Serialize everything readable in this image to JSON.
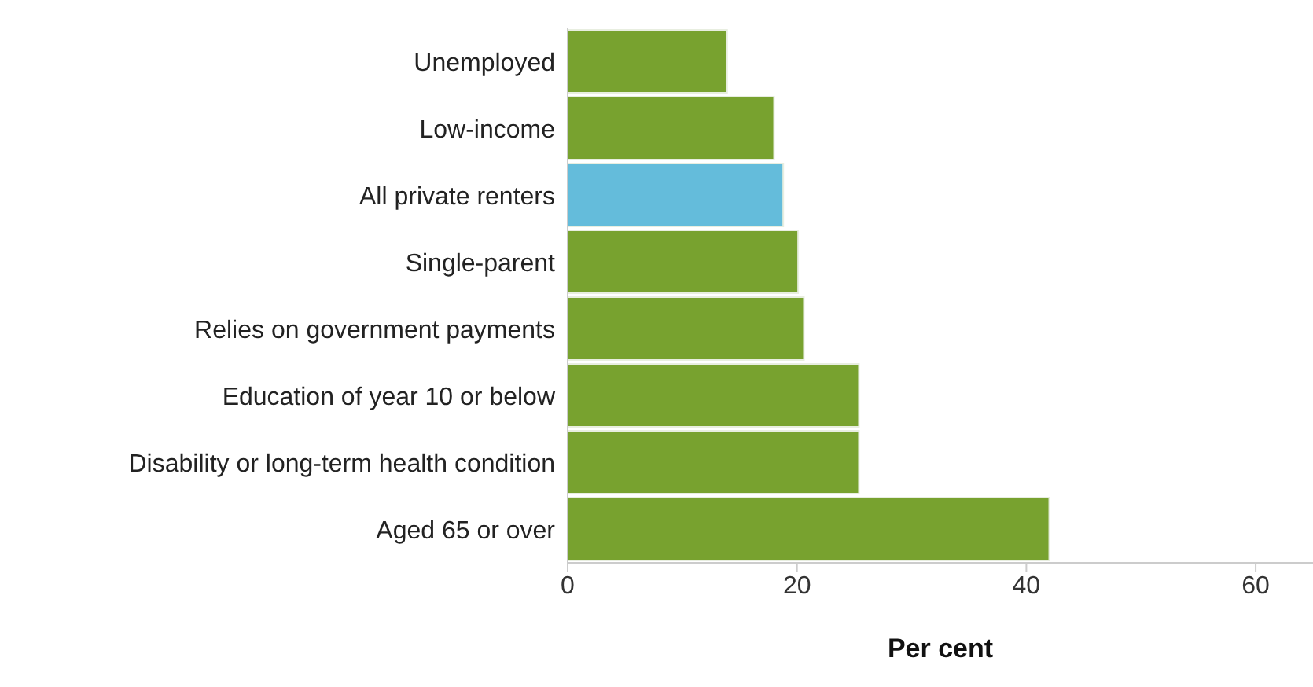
{
  "chart_data": {
    "type": "bar",
    "orientation": "horizontal",
    "xlabel": "Per cent",
    "categories": [
      "Unemployed",
      "Low-income",
      "All private renters",
      "Single-parent",
      "Relies on government payments",
      "Education of year 10 or below",
      "Disability or long-term health condition",
      "Aged 65 or over"
    ],
    "values": [
      13.9,
      18.0,
      18.8,
      20.1,
      20.6,
      25.4,
      25.4,
      42.0
    ],
    "colors": [
      "#78a22f",
      "#78a22f",
      "#64bcdb",
      "#78a22f",
      "#78a22f",
      "#78a22f",
      "#78a22f",
      "#78a22f"
    ],
    "xlim": [
      0,
      65
    ],
    "xticks": [
      0,
      20,
      40,
      60
    ],
    "grid": false,
    "legend": false
  }
}
